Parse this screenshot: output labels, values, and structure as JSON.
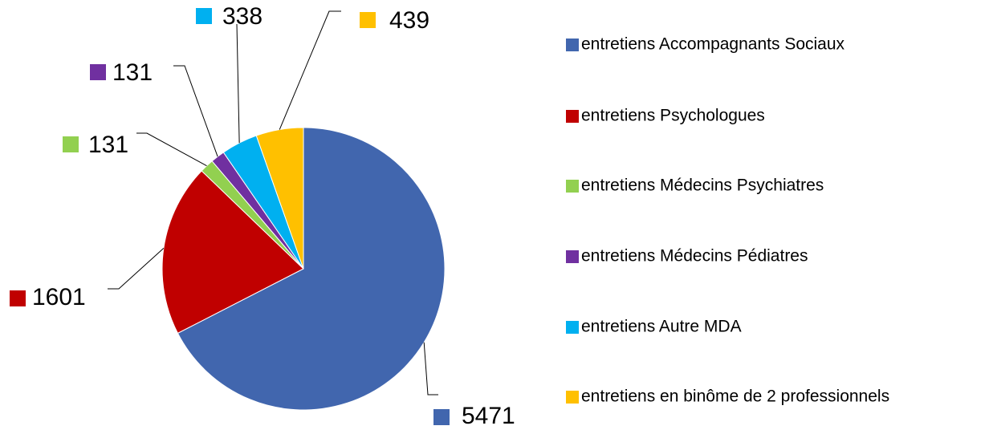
{
  "chart_data": {
    "type": "pie",
    "categories": [
      "entretiens Accompagnants Sociaux",
      "entretiens Psychologues",
      "entretiens Médecins Psychiatres",
      "entretiens Médecins Pédiatres",
      "entretiens Autre MDA",
      "entretiens en binôme de 2 professionnels"
    ],
    "values": [
      5471,
      1601,
      131,
      131,
      338,
      439
    ],
    "colors": [
      "#4166ae",
      "#c00000",
      "#92d050",
      "#7030a0",
      "#00b0f0",
      "#ffc000"
    ],
    "legend": "right"
  }
}
